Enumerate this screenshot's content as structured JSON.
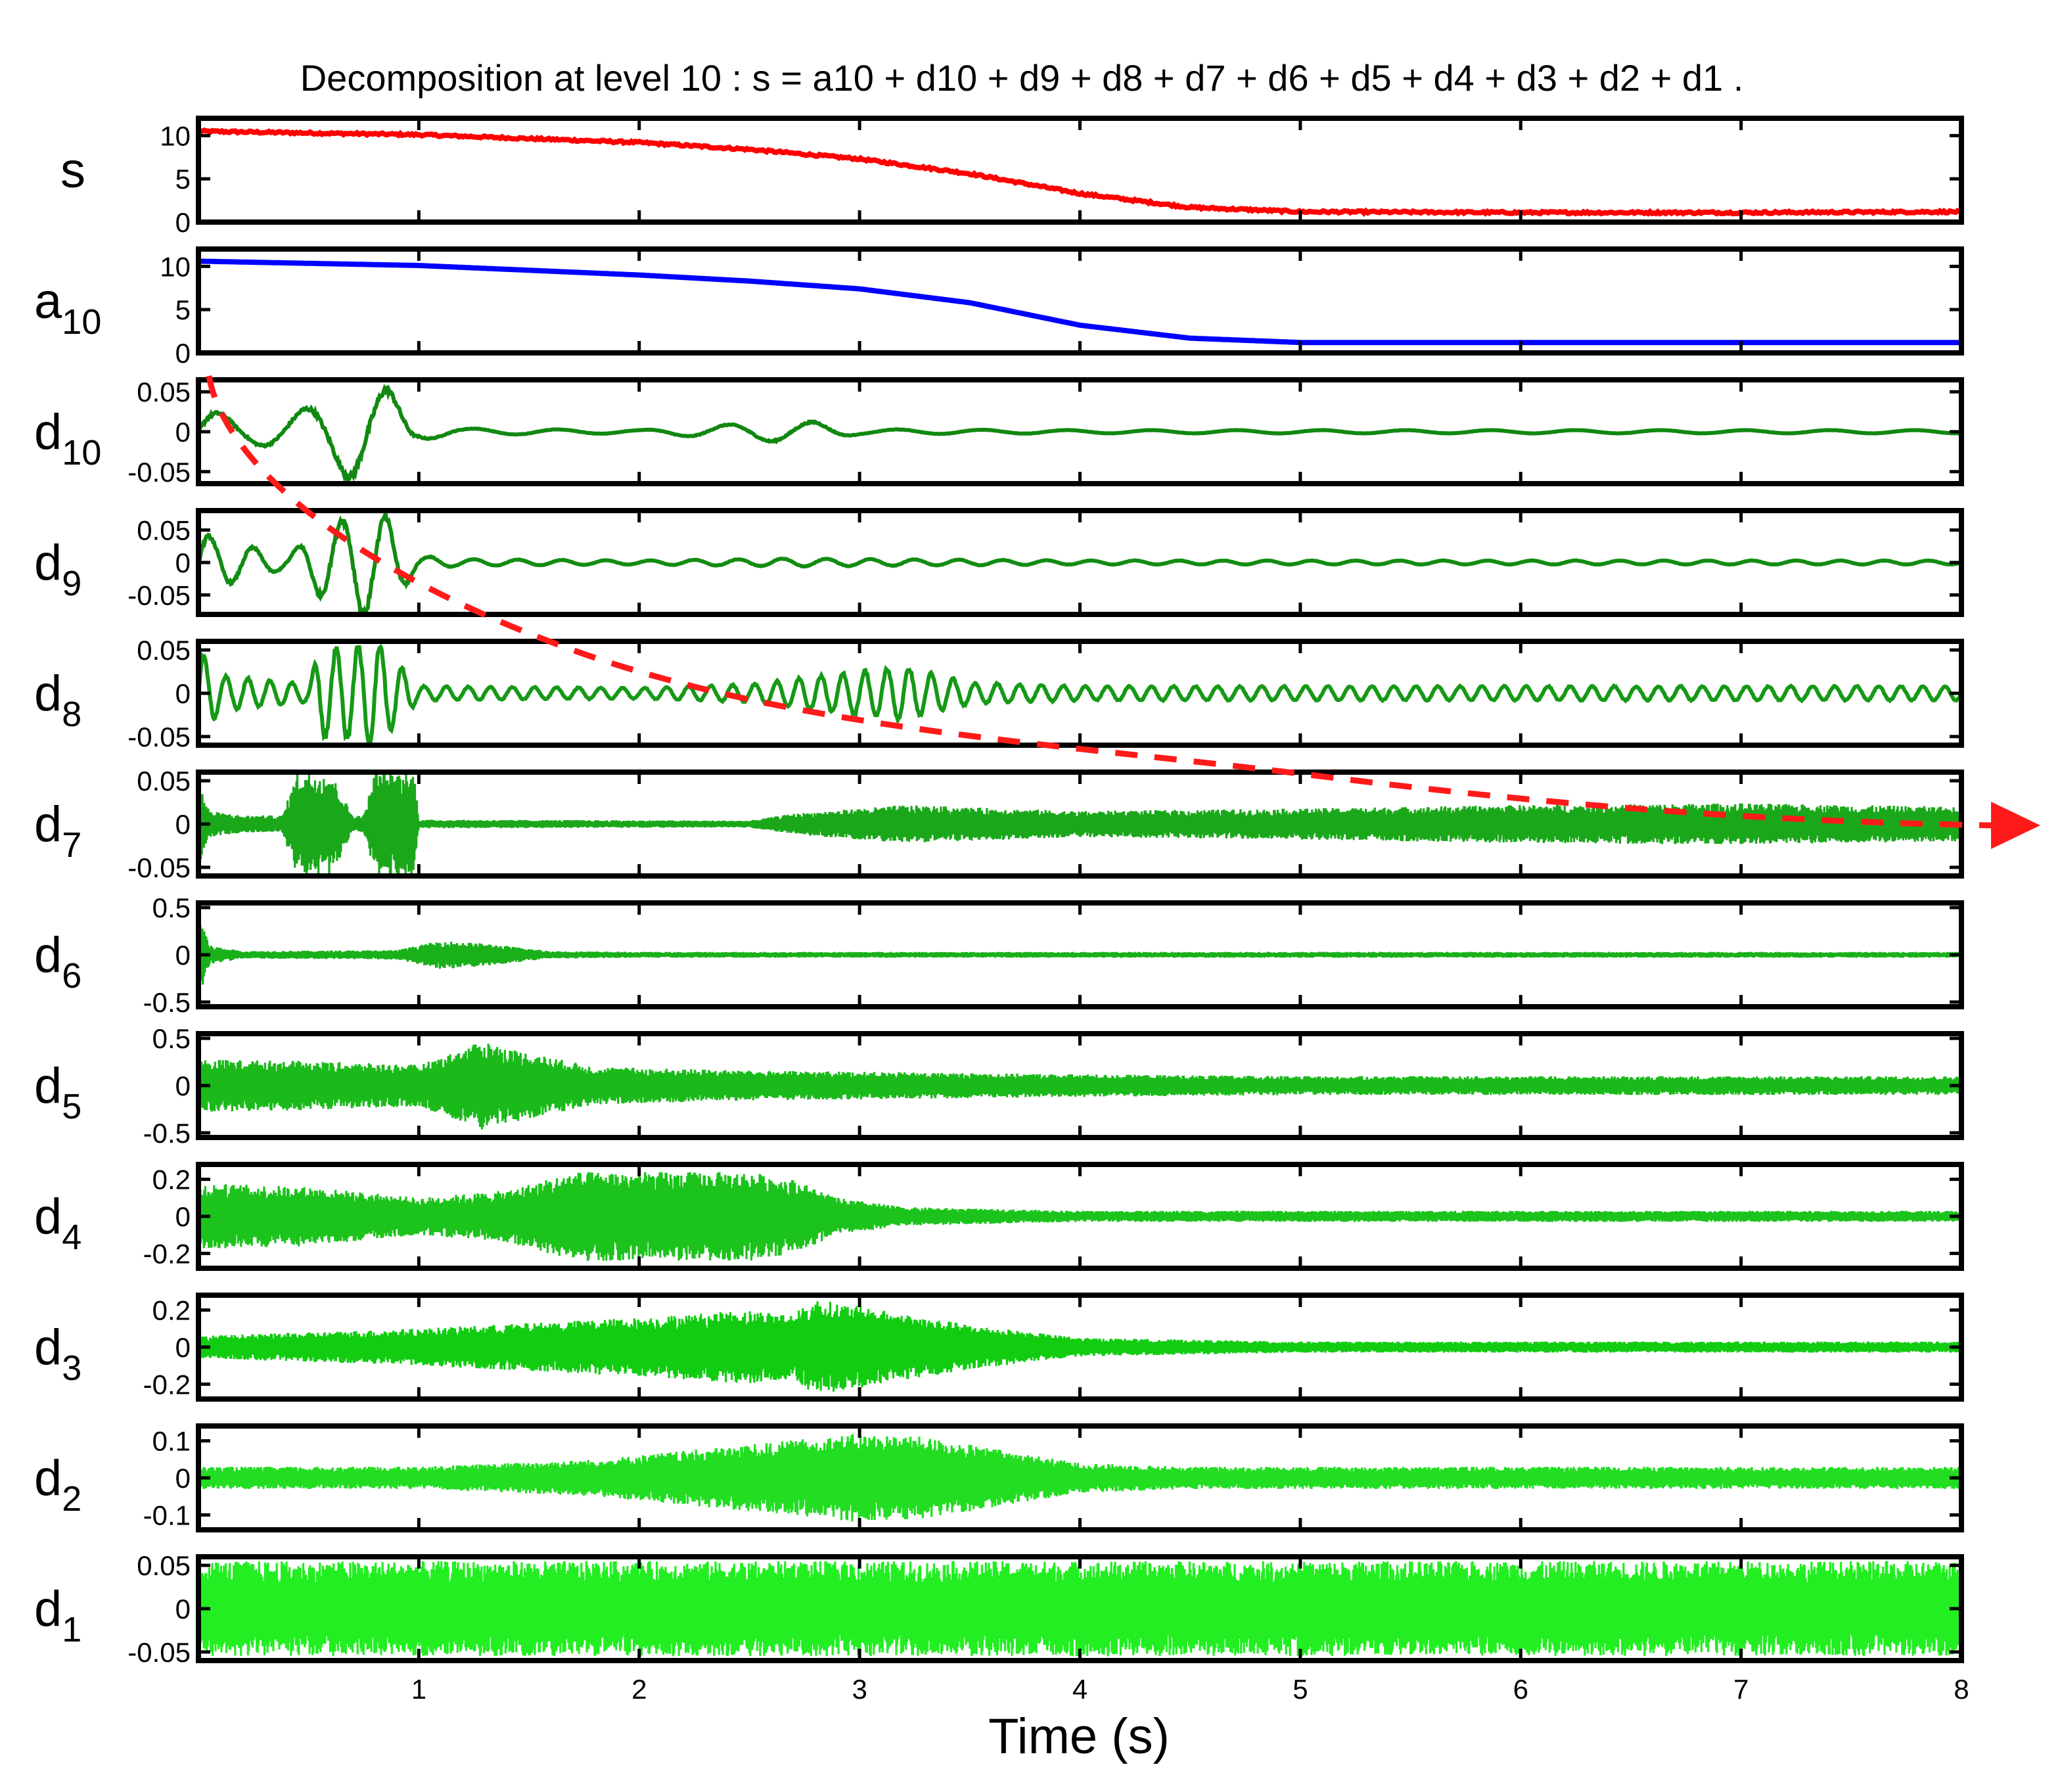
{
  "chart_data": {
    "type": "line",
    "title": "Decomposition at level 10 : s = a10 + d10 + d9 + d8 + d7 + d6 + d5 + d4 + d3 + d2 + d1 .",
    "xlabel": "Time (s)",
    "xlim": [
      0,
      8
    ],
    "x_ticks": [
      1,
      2,
      3,
      4,
      5,
      6,
      7,
      8
    ],
    "grid": false,
    "panels": [
      {
        "key": "s",
        "label": "s",
        "sub": "",
        "color": "#ff0000",
        "kind": "trend",
        "noise": 0.25,
        "ylim": [
          0,
          12
        ],
        "yticks": [
          0,
          5,
          10
        ],
        "ytick_labels": [
          "0",
          "5",
          "10"
        ],
        "x": [
          0,
          1,
          2,
          2.5,
          3,
          3.5,
          4,
          4.5,
          5,
          6,
          7,
          8
        ],
        "y": [
          10.5,
          10.1,
          9.2,
          8.4,
          7.3,
          5.6,
          3.3,
          1.7,
          1.2,
          1.1,
          1.1,
          1.2
        ]
      },
      {
        "key": "a10",
        "label": "a",
        "sub": "10",
        "color": "#0000ff",
        "kind": "trend",
        "noise": 0,
        "ylim": [
          0,
          12
        ],
        "yticks": [
          0,
          5,
          10
        ],
        "ytick_labels": [
          "0",
          "5",
          "10"
        ],
        "x": [
          0,
          1,
          2,
          2.5,
          3,
          3.5,
          4,
          4.5,
          5,
          6,
          7,
          8
        ],
        "y": [
          10.6,
          10.1,
          9.0,
          8.3,
          7.4,
          5.8,
          3.2,
          1.7,
          1.2,
          1.2,
          1.2,
          1.2
        ]
      },
      {
        "key": "d10",
        "label": "d",
        "sub": "10",
        "color": "#118811",
        "kind": "osc",
        "freq": 2.6,
        "ylim": [
          -0.065,
          0.065
        ],
        "yticks": [
          -0.05,
          0,
          0.05
        ],
        "ytick_labels": [
          "-0.05",
          "0",
          "0.05"
        ],
        "env_x": [
          0,
          0.2,
          0.4,
          0.6,
          0.7,
          0.85,
          1.0,
          1.2,
          2.0,
          2.6,
          2.8,
          3.0,
          4.0,
          8.0
        ],
        "env_y": [
          0.03,
          0.015,
          0.02,
          0.04,
          0.06,
          0.055,
          0.01,
          0.004,
          0.002,
          0.012,
          0.012,
          0.003,
          0.002,
          0.002
        ]
      },
      {
        "key": "d9",
        "label": "d",
        "sub": "9",
        "color": "#128c12",
        "kind": "osc",
        "freq": 5,
        "ylim": [
          -0.08,
          0.08
        ],
        "yticks": [
          -0.05,
          0,
          0.05
        ],
        "ytick_labels": [
          "-0.05",
          "0",
          "0.05"
        ],
        "env_x": [
          0,
          0.1,
          0.4,
          0.55,
          0.75,
          0.85,
          1.0,
          1.2,
          2.0,
          2.7,
          4.0,
          8.0
        ],
        "env_y": [
          0.045,
          0.035,
          0.01,
          0.05,
          0.08,
          0.07,
          0.01,
          0.005,
          0.003,
          0.006,
          0.003,
          0.003
        ]
      },
      {
        "key": "d8",
        "label": "d",
        "sub": "8",
        "color": "#169916",
        "kind": "osc",
        "freq": 10,
        "ylim": [
          -0.06,
          0.06
        ],
        "yticks": [
          -0.05,
          0,
          0.05
        ],
        "ytick_labels": [
          "-0.05",
          "0",
          "0.05"
        ],
        "env_x": [
          0,
          0.1,
          0.5,
          0.55,
          0.6,
          0.75,
          0.8,
          0.85,
          1.0,
          2.0,
          2.5,
          3.0,
          3.2,
          3.5,
          4.0,
          6.0,
          8.0
        ],
        "env_y": [
          0.05,
          0.02,
          0.01,
          0.05,
          0.05,
          0.055,
          0.06,
          0.05,
          0.008,
          0.006,
          0.01,
          0.025,
          0.03,
          0.012,
          0.008,
          0.008,
          0.008
        ]
      },
      {
        "key": "d7",
        "label": "d",
        "sub": "7",
        "color": "#1aa81a",
        "kind": "noise",
        "ylim": [
          -0.06,
          0.06
        ],
        "yticks": [
          -0.05,
          0,
          0.05
        ],
        "ytick_labels": [
          "-0.05",
          "0",
          "0.05"
        ],
        "env_x": [
          0,
          0.05,
          0.2,
          0.38,
          0.45,
          0.6,
          0.7,
          0.75,
          0.8,
          0.98,
          1.0,
          2.5,
          2.7,
          3.2,
          4.0,
          5.0,
          6.0,
          7.0,
          8.0
        ],
        "env_y": [
          0.05,
          0.015,
          0.01,
          0.01,
          0.06,
          0.06,
          0.01,
          0.01,
          0.06,
          0.06,
          0.005,
          0.004,
          0.012,
          0.022,
          0.015,
          0.018,
          0.022,
          0.024,
          0.02
        ]
      },
      {
        "key": "d6",
        "label": "d",
        "sub": "6",
        "color": "#1ab01a",
        "kind": "noise",
        "ylim": [
          -0.55,
          0.55
        ],
        "yticks": [
          -0.5,
          0,
          0.5
        ],
        "ytick_labels": [
          "-0.5",
          "0",
          "0.5"
        ],
        "env_x": [
          0,
          0.05,
          0.2,
          0.9,
          1.1,
          1.3,
          1.6,
          2.0,
          8.0
        ],
        "env_y": [
          0.5,
          0.1,
          0.04,
          0.05,
          0.15,
          0.12,
          0.04,
          0.03,
          0.03
        ]
      },
      {
        "key": "d5",
        "label": "d",
        "sub": "5",
        "color": "#1bba1b",
        "kind": "noise",
        "ylim": [
          -0.55,
          0.55
        ],
        "yticks": [
          -0.5,
          0,
          0.5
        ],
        "ytick_labels": [
          "-0.5",
          "0",
          "0.5"
        ],
        "env_x": [
          0,
          0.5,
          1.0,
          1.1,
          1.3,
          1.4,
          1.6,
          1.8,
          2.5,
          4.0,
          5.0,
          8.0
        ],
        "env_y": [
          0.28,
          0.26,
          0.22,
          0.3,
          0.48,
          0.4,
          0.3,
          0.2,
          0.16,
          0.12,
          0.1,
          0.1
        ]
      },
      {
        "key": "d4",
        "label": "d",
        "sub": "4",
        "color": "#1cc31c",
        "kind": "noise",
        "ylim": [
          -0.28,
          0.28
        ],
        "yticks": [
          -0.2,
          0,
          0.2
        ],
        "ytick_labels": [
          "-0.2",
          "0",
          "0.2"
        ],
        "env_x": [
          0,
          0.5,
          1.0,
          1.4,
          1.7,
          2.2,
          2.5,
          2.7,
          2.9,
          3.2,
          4.0,
          8.0
        ],
        "env_y": [
          0.18,
          0.16,
          0.1,
          0.14,
          0.24,
          0.24,
          0.24,
          0.2,
          0.1,
          0.05,
          0.03,
          0.03
        ]
      },
      {
        "key": "d3",
        "label": "d",
        "sub": "3",
        "color": "#12cc12",
        "kind": "noise",
        "ylim": [
          -0.28,
          0.28
        ],
        "yticks": [
          -0.2,
          0,
          0.2
        ],
        "ytick_labels": [
          "-0.2",
          "0",
          "0.2"
        ],
        "env_x": [
          0,
          0.5,
          1.0,
          1.5,
          2.0,
          2.5,
          2.7,
          2.8,
          3.0,
          3.5,
          4.0,
          5.0,
          8.0
        ],
        "env_y": [
          0.06,
          0.08,
          0.1,
          0.13,
          0.16,
          0.2,
          0.18,
          0.26,
          0.22,
          0.12,
          0.05,
          0.03,
          0.03
        ]
      },
      {
        "key": "d2",
        "label": "d",
        "sub": "2",
        "color": "#22dd22",
        "kind": "noise",
        "ylim": [
          -0.14,
          0.14
        ],
        "yticks": [
          -0.1,
          0,
          0.1
        ],
        "ytick_labels": [
          "-0.1",
          "0",
          "0.1"
        ],
        "env_x": [
          0,
          1.0,
          1.8,
          2.5,
          3.0,
          3.3,
          4.0,
          4.5,
          8.0
        ],
        "env_y": [
          0.03,
          0.03,
          0.05,
          0.09,
          0.12,
          0.11,
          0.04,
          0.03,
          0.03
        ]
      },
      {
        "key": "d1",
        "label": "d",
        "sub": "1",
        "color": "#22ee22",
        "kind": "noise",
        "ylim": [
          -0.06,
          0.06
        ],
        "yticks": [
          -0.05,
          0,
          0.05
        ],
        "ytick_labels": [
          "-0.05",
          "0",
          "0.05"
        ],
        "env_x": [
          0,
          8.0
        ],
        "env_y": [
          0.055,
          0.055
        ]
      }
    ],
    "annotation": {
      "type": "dashed-arrow",
      "color": "#ff1a1a",
      "meaning": "decreasing amplitude trend across detail levels"
    }
  }
}
